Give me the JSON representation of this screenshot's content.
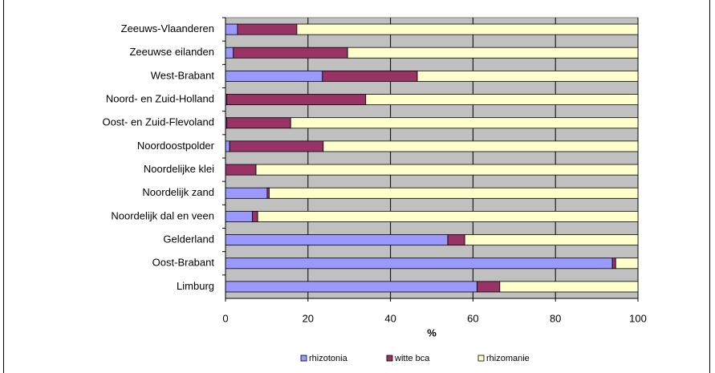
{
  "chart_data": {
    "type": "stacked-barh",
    "x_label": "%",
    "categories": [
      "Zeeuws-Vlaanderen",
      "Zeeuwse eilanden",
      "West-Brabant",
      "Noord- en Zuid-Holland",
      "Oost- en Zuid-Flevoland",
      "Noordoostpolder",
      "Noordelijke klei",
      "Noordelijk zand",
      "Noordelijk dal en veen",
      "Gelderland",
      "Oost-Brabant",
      "Limburg"
    ],
    "series": [
      {
        "name": "rhizotonia",
        "color": "#9999ff",
        "values": [
          2.9,
          1.9,
          23.5,
          0.3,
          0.3,
          1,
          0,
          10.1,
          6.5,
          53.9,
          93.8,
          61
        ]
      },
      {
        "name": "witte bca",
        "color": "#993366",
        "values": [
          14.4,
          27.7,
          23,
          33.7,
          15.5,
          22.7,
          7.4,
          0.5,
          1.3,
          4.1,
          0.8,
          5.5
        ]
      },
      {
        "name": "rhizomanie",
        "color": "#ffffcc",
        "values": [
          82.7,
          70.4,
          53.5,
          66,
          84.2,
          76.3,
          92.6,
          89.4,
          92.2,
          42,
          5.4,
          33.5
        ]
      }
    ],
    "xlim": [
      0,
      100
    ],
    "xticks": [
      0,
      20,
      40,
      60,
      80,
      100
    ],
    "grid": true,
    "legend": "bottom"
  }
}
